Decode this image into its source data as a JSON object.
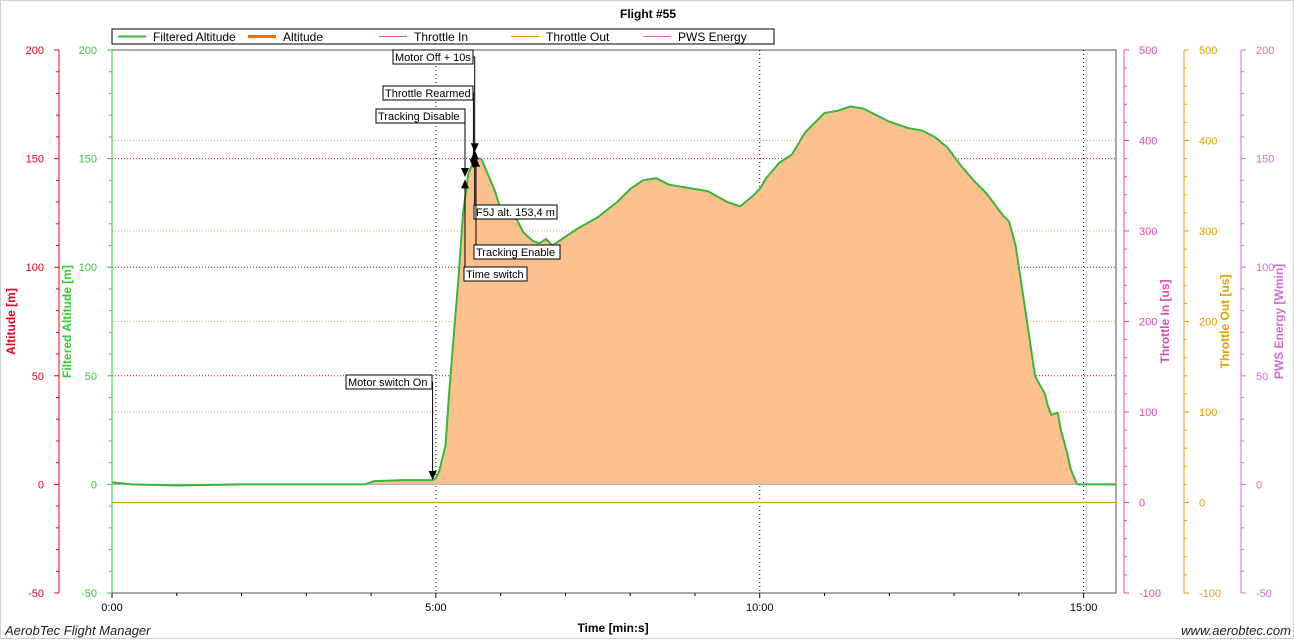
{
  "footer": {
    "left": "AerobTec Flight Manager",
    "right": "www.aerobtec.com"
  },
  "colors": {
    "altitude_axis": "#e8001c",
    "filtered_axis": "#33cc33",
    "filtered_line": "#39b53b",
    "area_fill": "#fdc18d",
    "throttle_in": "#e04bb0",
    "throttle_out": "#e0a000",
    "pws_energy": "#d66ad0",
    "grid_red": "#e0001a",
    "grid_orange": "#f0b040"
  },
  "chart_data": {
    "type": "area",
    "title": "Flight #55",
    "xlabel": "Time [min:s]",
    "x_unit": "minutes",
    "xlim": [
      0,
      15.5
    ],
    "x_ticks": [
      {
        "value": 0,
        "label": "0:00"
      },
      {
        "value": 5,
        "label": "5:00"
      },
      {
        "value": 10,
        "label": "10:00"
      },
      {
        "value": 15,
        "label": "15:00"
      }
    ],
    "axes": [
      {
        "id": "altitude",
        "label": "Altitude [m]",
        "side": "left",
        "range": [
          -50,
          200
        ],
        "ticks": [
          -50,
          0,
          50,
          100,
          150,
          200
        ],
        "color": "#e8001c"
      },
      {
        "id": "filtered",
        "label": "Filtered Altitude [m]",
        "side": "left",
        "range": [
          -50,
          200
        ],
        "ticks": [
          -50,
          0,
          50,
          100,
          150,
          200
        ],
        "color": "#33cc33"
      },
      {
        "id": "throttle_in",
        "label": "Throttle In [us]",
        "side": "right",
        "range": [
          -100,
          500
        ],
        "ticks": [
          -100,
          0,
          100,
          200,
          300,
          400,
          500
        ],
        "color": "#e04bb0"
      },
      {
        "id": "throttle_out",
        "label": "Throttle Out [us]",
        "side": "right",
        "range": [
          -100,
          500
        ],
        "ticks": [
          -100,
          0,
          100,
          200,
          300,
          400,
          500
        ],
        "color": "#e0a000"
      },
      {
        "id": "pws",
        "label": "PWS Energy [Wmin]",
        "side": "right",
        "range": [
          -50,
          200
        ],
        "ticks": [
          -50,
          0,
          50,
          100,
          150,
          200
        ],
        "color": "#d66ad0"
      }
    ],
    "legend": [
      "Filtered Altitude",
      "Altitude",
      "Throttle In",
      "Throttle Out",
      "PWS Energy"
    ],
    "grid": true,
    "legend_position": "top-left",
    "series": [
      {
        "name": "Filtered Altitude",
        "axis": "filtered",
        "x": [
          0,
          0.3,
          1,
          2,
          3,
          3.9,
          4.05,
          4.5,
          4.95,
          5.0,
          5.05,
          5.15,
          5.2,
          5.28,
          5.35,
          5.42,
          5.5,
          5.6,
          5.7,
          5.8,
          5.9,
          6.0,
          6.1,
          6.25,
          6.35,
          6.5,
          6.6,
          6.7,
          6.8,
          7.0,
          7.2,
          7.5,
          7.8,
          8.0,
          8.2,
          8.4,
          8.6,
          8.8,
          9.0,
          9.2,
          9.5,
          9.7,
          9.9,
          10.0,
          10.1,
          10.3,
          10.5,
          10.7,
          10.9,
          11.0,
          11.2,
          11.4,
          11.6,
          11.8,
          12.0,
          12.3,
          12.5,
          12.7,
          12.9,
          13.1,
          13.3,
          13.5,
          13.65,
          13.75,
          13.85,
          13.95,
          14.05,
          14.15,
          14.25,
          14.3,
          14.4,
          14.45,
          14.5,
          14.6,
          14.65,
          14.75,
          14.8,
          14.9,
          15.0,
          15.2,
          15.5
        ],
        "y": [
          1,
          0,
          -0.5,
          0,
          0,
          0,
          1.5,
          2,
          2,
          3,
          6,
          18,
          40,
          70,
          95,
          125,
          143,
          150,
          150,
          143,
          136,
          127,
          123,
          122,
          116,
          112,
          111,
          113,
          110,
          114,
          118,
          123,
          130,
          136,
          140,
          141,
          138,
          137,
          136,
          135,
          130,
          128,
          133,
          136,
          141,
          148,
          152,
          162,
          168,
          171,
          172,
          174,
          173,
          170,
          167,
          164,
          163,
          160,
          155,
          147,
          140,
          134,
          128,
          124,
          121,
          110,
          90,
          70,
          50,
          47,
          42,
          36,
          32,
          33,
          25,
          14,
          7,
          0,
          0,
          0,
          0
        ]
      },
      {
        "name": "Throttle Out",
        "axis": "throttle_out",
        "x": [
          0,
          15.5
        ],
        "y": [
          0,
          0
        ]
      }
    ],
    "annotations": [
      {
        "label": "Motor switch On",
        "x": 4.95,
        "y": 2.5
      },
      {
        "label": "Tracking Disable",
        "x": 5.45,
        "y": 142
      },
      {
        "label": "Throttle Rearmed",
        "x": 5.58,
        "y": 146
      },
      {
        "label": "Motor Off + 10s",
        "x": 5.6,
        "y": 153.4
      },
      {
        "label": "F5J alt. 153,4 m",
        "x": 5.6,
        "y": 153.4
      },
      {
        "label": "Tracking Enable",
        "x": 5.62,
        "y": 150
      },
      {
        "label": "Time switch",
        "x": 5.45,
        "y": 140
      }
    ]
  }
}
